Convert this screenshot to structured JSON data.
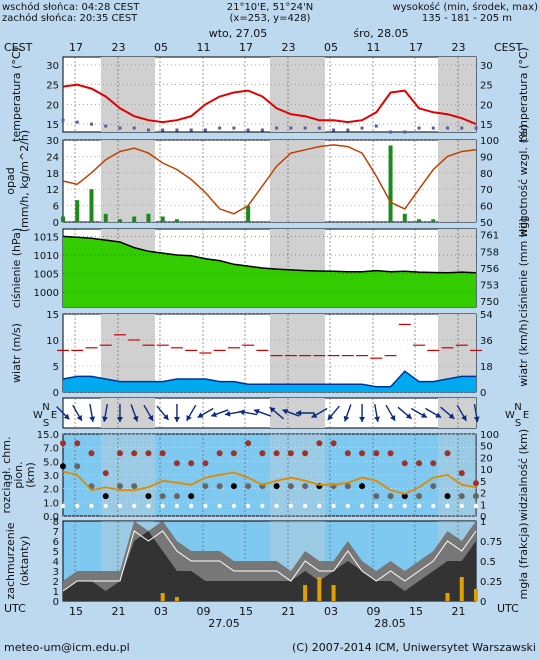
{
  "header": {
    "sunrise": "wschód słońca: 04:28 CEST",
    "sunset": "zachód słońca: 20:35 CEST",
    "coords": "21°10'E, 51°24'N",
    "grid": "(x=253, y=428)",
    "altitude_label": "wysokość (min, środek, max)",
    "altitude_values": "135 - 181 - 205 m",
    "date1": "wto, 27.05",
    "date2": "śro, 28.05",
    "tz_left": "CEST",
    "tz_right": "CEST",
    "top_hours": [
      "17",
      "23",
      "05",
      "11",
      "17",
      "23",
      "05",
      "11",
      "17",
      "23"
    ]
  },
  "footer": {
    "utc_left": "UTC",
    "utc_right": "UTC",
    "bottom_hours": [
      "15",
      "21",
      "03",
      "09",
      "15",
      "21",
      "03",
      "09",
      "15",
      "21"
    ],
    "date1": "27.05",
    "date2": "28.05",
    "email": "meteo-um@icm.edu.pl",
    "copyright": "(C) 2007-2014 ICM, Uniwersytet Warszawski"
  },
  "colors": {
    "bg": "#bcd9f0",
    "panel": "#ffffff",
    "night": "#d0d0d0",
    "temp": "#e00000",
    "humidity": "#c04000",
    "precip": "#1a8a1a",
    "pressure_fill": "#33cc00",
    "wind_fill": "#00aaee",
    "wind_gust": "#cc0000",
    "visibility_panel": "#7fc8ef",
    "visibility_line": "#e08a00",
    "cloud_dark": "#333333",
    "cloud_mid": "#777777",
    "fog": "#e0a000"
  },
  "chart_data": [
    {
      "type": "line",
      "name": "temperature",
      "ylabel_left": "temperatura (°C)",
      "ylabel_right": "temperatura (°C)",
      "ylim": [
        13,
        32
      ],
      "yticks": [
        15,
        20,
        25,
        30
      ],
      "x_hours": [
        15,
        18,
        21,
        24,
        27,
        30,
        33,
        36,
        39,
        42,
        45,
        48,
        51,
        54,
        57,
        60,
        63,
        66,
        69,
        72,
        75,
        78,
        81,
        84,
        87,
        90,
        93,
        96,
        99,
        102
      ],
      "values": [
        24.5,
        25,
        24,
        22,
        19,
        17,
        16,
        15.5,
        16,
        17,
        20,
        22,
        23,
        23.5,
        22,
        19,
        17.5,
        17,
        16,
        16,
        15.5,
        16,
        18,
        23,
        23.5,
        19,
        18,
        17.5,
        16.5,
        15
      ],
      "dew_point": [
        16,
        15.5,
        15,
        14.5,
        14,
        14,
        13.5,
        13.5,
        13.5,
        13.5,
        13.5,
        14,
        14,
        13.5,
        13.5,
        14,
        14,
        14,
        14,
        13.5,
        13.5,
        14,
        14.5,
        13,
        13,
        14,
        14,
        14,
        14,
        14
      ]
    },
    {
      "type": "line",
      "name": "precip_humidity",
      "ylabel_left": "opad (mm/h, kg/m^2/h)",
      "ylabel_right": "wilgotność wzgl. (%)",
      "ylim_left": [
        0,
        30
      ],
      "yticks_left": [
        0,
        6,
        12,
        18,
        24,
        30
      ],
      "ylim_right": [
        50,
        100
      ],
      "yticks_right": [
        50,
        60,
        70,
        80,
        90,
        100
      ],
      "humidity": [
        75,
        73,
        80,
        88,
        93,
        95,
        92,
        86,
        82,
        76,
        68,
        58,
        55,
        60,
        72,
        84,
        92,
        94,
        96,
        97,
        96,
        92,
        78,
        62,
        58,
        70,
        82,
        90,
        93,
        94
      ],
      "precip": [
        2,
        8,
        12,
        3,
        1,
        2,
        3,
        2,
        1,
        0,
        0,
        0,
        0,
        6,
        0,
        0,
        0,
        0,
        0,
        0,
        0,
        0,
        0,
        28,
        3,
        1,
        1,
        0,
        0,
        0
      ]
    },
    {
      "type": "area",
      "name": "pressure",
      "ylabel_left": "ciśnienie (hPa)",
      "ylabel_right": "ciśnienie (mm Hg)",
      "ylim": [
        996,
        1017
      ],
      "yticks_left": [
        1000,
        1005,
        1010,
        1015
      ],
      "yticks_right": [
        750,
        753,
        756,
        758,
        761
      ],
      "values": [
        1015,
        1014.8,
        1014.5,
        1014,
        1013.5,
        1012,
        1011,
        1010.5,
        1010,
        1009.8,
        1009,
        1008.5,
        1007.5,
        1007,
        1006.5,
        1006.2,
        1006,
        1005.8,
        1005.7,
        1005.6,
        1005.5,
        1005.5,
        1005.8,
        1005.5,
        1005.6,
        1005.4,
        1005.3,
        1005.2,
        1005.4,
        1005.2
      ]
    },
    {
      "type": "area",
      "name": "wind",
      "ylabel_left": "wiatr (m/s)",
      "ylabel_right": "wiatr (km/h)",
      "ylim": [
        0,
        15
      ],
      "yticks_left": [
        0,
        5,
        10,
        15
      ],
      "yticks_right": [
        0,
        18,
        36,
        54
      ],
      "values": [
        2.5,
        3,
        3,
        2.5,
        2,
        2,
        2,
        2,
        2.5,
        2.5,
        2.5,
        2,
        2,
        1.5,
        1.5,
        1.5,
        1.5,
        1.5,
        1.5,
        1.5,
        1.5,
        1.5,
        1,
        1,
        4,
        2,
        2,
        2.5,
        3,
        3
      ],
      "gusts": [
        8,
        8,
        8.5,
        9,
        11,
        10,
        9,
        9,
        8.5,
        8,
        7.5,
        8,
        8.5,
        9,
        8,
        7,
        7,
        7,
        7,
        7,
        7,
        7,
        6.5,
        7,
        13,
        9,
        8,
        8.5,
        9,
        8
      ]
    },
    {
      "type": "scatter",
      "name": "wind_direction",
      "ylabel": "W S N E",
      "directions_deg": [
        45,
        60,
        80,
        100,
        90,
        70,
        60,
        50,
        90,
        120,
        150,
        160,
        170,
        190,
        200,
        220,
        200,
        180,
        150,
        130,
        110,
        90,
        80,
        60,
        40,
        30,
        30,
        40,
        60,
        80
      ]
    },
    {
      "type": "line",
      "name": "cloud_base_visibility",
      "ylabel_left": "pion. rozciągł. chm. (km)",
      "ylabel_right": "widzialność (km)",
      "yticks_left": [
        "0.0",
        "1.0",
        "2.0",
        "3.0",
        "5.0",
        "7.0",
        "15.0"
      ],
      "yticks_right": [
        0,
        1,
        2,
        5,
        10,
        20,
        50,
        100
      ],
      "visibility": [
        15,
        12,
        4,
        5,
        4,
        4,
        5,
        8,
        7,
        6,
        10,
        12,
        14,
        10,
        6,
        8,
        10,
        8,
        6,
        6,
        7,
        10,
        8,
        4,
        3,
        5,
        10,
        12,
        6,
        5
      ],
      "cloud_top": [
        7,
        7,
        6,
        4,
        6,
        6,
        6,
        6,
        5,
        5,
        5,
        6,
        6,
        7,
        6,
        6,
        6,
        6,
        7,
        7,
        6,
        6,
        6,
        6,
        5,
        5,
        5,
        6,
        4,
        3
      ],
      "cloud_base": [
        5,
        5,
        3,
        2,
        3,
        3,
        2,
        2,
        2,
        2,
        3,
        3,
        3,
        3,
        3,
        3,
        3,
        3,
        3,
        3,
        3,
        3,
        2,
        2,
        2,
        2,
        3,
        2,
        2,
        2
      ]
    },
    {
      "type": "area",
      "name": "cloudiness_fog",
      "ylabel_left": "zachmurzenie (oktanty)",
      "ylabel_right": "mgła (frakcja)",
      "ylim_left": [
        0,
        8
      ],
      "yticks_left": [
        0,
        1,
        2,
        3,
        4,
        5,
        6,
        7,
        8
      ],
      "ylim_right": [
        0,
        1
      ],
      "yticks_right": [
        "0",
        "0.25",
        "0.5",
        "0.75",
        "1"
      ],
      "total": [
        2,
        3,
        3,
        3,
        3,
        8,
        7,
        8,
        6,
        5,
        5,
        5,
        4,
        4,
        4,
        4,
        3,
        5,
        4,
        4,
        6,
        4,
        3,
        4,
        3,
        4,
        5,
        7,
        6,
        8
      ],
      "low": [
        1,
        2,
        2,
        1,
        2,
        6,
        7,
        5,
        3,
        3,
        2,
        2,
        2,
        2,
        2,
        2,
        2,
        3,
        2,
        3,
        4,
        3,
        2,
        2,
        1,
        2,
        3,
        4,
        4,
        6
      ],
      "fog": [
        0,
        0,
        0,
        0,
        0,
        0,
        0,
        0.1,
        0.05,
        0,
        0,
        0,
        0,
        0,
        0,
        0,
        0,
        0.2,
        0.3,
        0.2,
        0,
        0,
        0,
        0,
        0,
        0,
        0,
        0.1,
        0.3,
        0.15
      ]
    }
  ]
}
